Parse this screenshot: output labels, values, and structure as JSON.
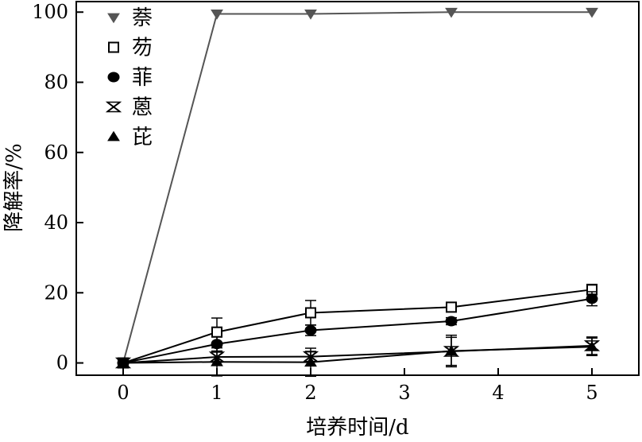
{
  "chart_data": {
    "type": "line",
    "title": "",
    "xlabel": "培养时间/d",
    "ylabel": "降解率/%",
    "xlim": [
      -0.5,
      5.5
    ],
    "ylim": [
      -3.5,
      103
    ],
    "x_ticks": [
      0,
      1,
      2,
      3,
      4,
      5
    ],
    "y_ticks": [
      0,
      20,
      40,
      60,
      80,
      100
    ],
    "grid": false,
    "legend": "top-left",
    "series": [
      {
        "name": "萘",
        "marker": "triangle-down",
        "color": "#555555",
        "x": [
          0,
          1,
          2,
          3.5,
          5
        ],
        "y": [
          0,
          99.5,
          99.5,
          100,
          100
        ],
        "err": [
          0,
          0,
          0,
          0,
          0
        ]
      },
      {
        "name": "芴",
        "marker": "square-open",
        "color": "#000000",
        "x": [
          0,
          1,
          2,
          3.5,
          5
        ],
        "y": [
          0,
          8.8,
          14.3,
          15.9,
          20.9
        ],
        "err": [
          0,
          4,
          3.5,
          1.2,
          1.5
        ]
      },
      {
        "name": "菲",
        "marker": "circle",
        "color": "#000000",
        "x": [
          0,
          1,
          2,
          3.5,
          5
        ],
        "y": [
          0,
          5.4,
          9.3,
          11.9,
          18.3
        ],
        "err": [
          0,
          2,
          1.5,
          1,
          2
        ]
      },
      {
        "name": "蒽",
        "marker": "x-open",
        "color": "#000000",
        "x": [
          0,
          1,
          2,
          3.5,
          5
        ],
        "y": [
          0,
          1.7,
          1.8,
          3.3,
          4.9
        ],
        "err": [
          0,
          1.5,
          1.5,
          4,
          2.5
        ]
      },
      {
        "name": "芘",
        "marker": "triangle-up",
        "color": "#000000",
        "x": [
          0,
          1,
          2,
          3.5,
          5
        ],
        "y": [
          0,
          0.3,
          0.2,
          3.4,
          4.6
        ],
        "err": [
          0,
          4,
          4,
          4.5,
          2.5
        ]
      }
    ]
  }
}
